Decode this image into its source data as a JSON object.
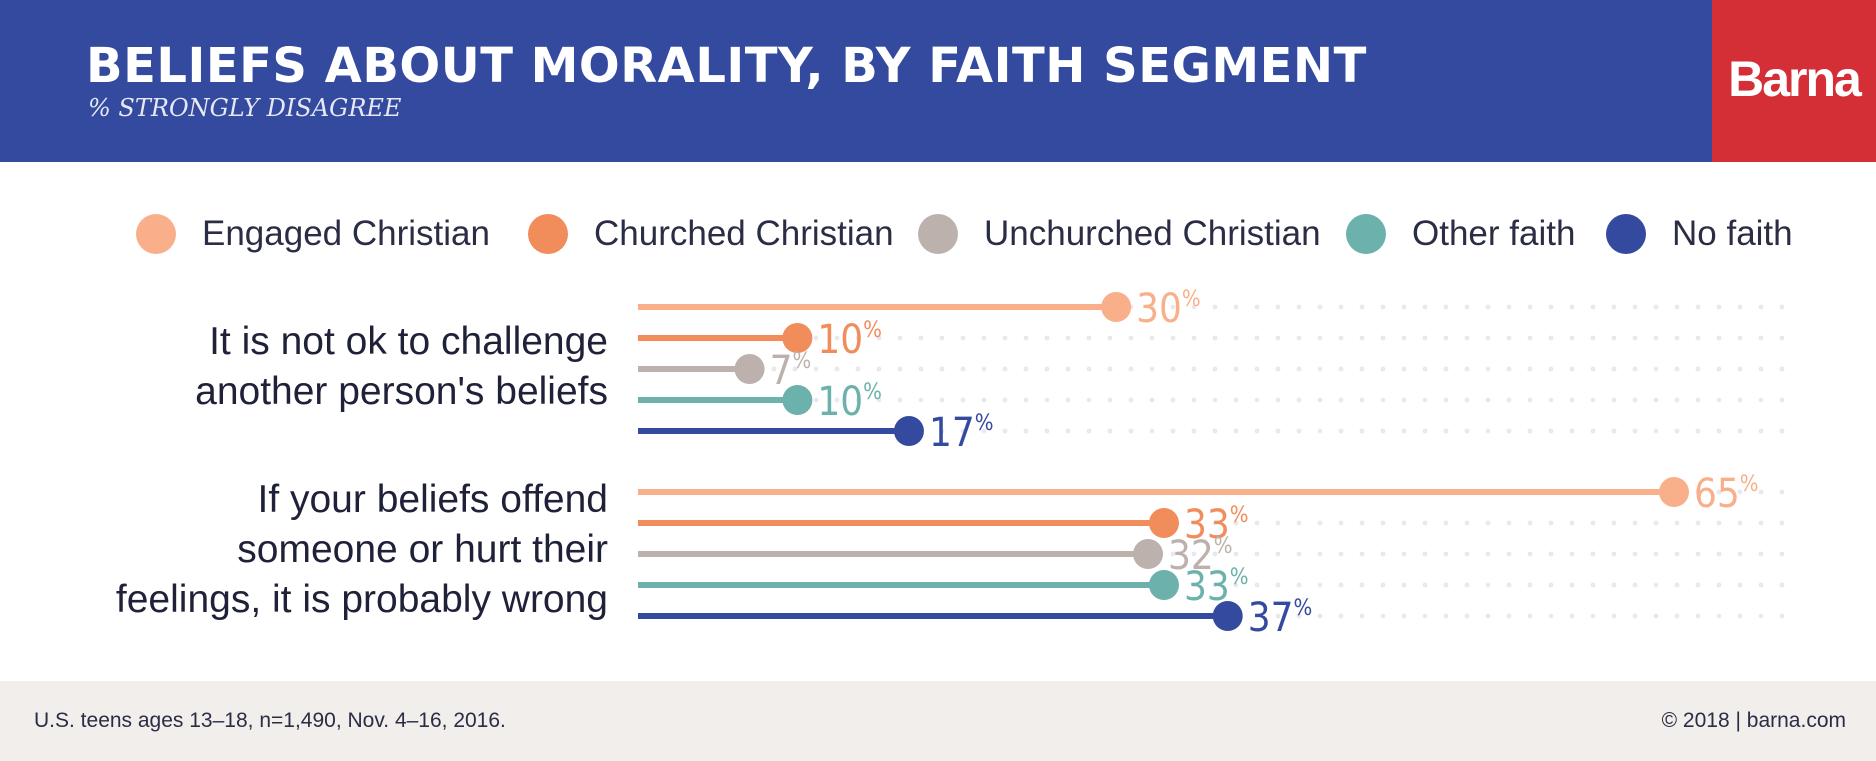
{
  "header": {
    "title": "BELIEFS ABOUT MORALITY, BY FAITH SEGMENT",
    "subtitle": "% STRONGLY DISAGREE",
    "logo": "Barna"
  },
  "colors": {
    "header_bg": "#344a9f",
    "logo_bg": "#d42e36",
    "footer_bg": "#f1eeec"
  },
  "chart_data": {
    "type": "bar",
    "orientation": "horizontal",
    "title": "BELIEFS ABOUT MORALITY, BY FAITH SEGMENT",
    "subtitle": "% STRONGLY DISAGREE",
    "xlim": [
      0,
      65
    ],
    "value_suffix": "%",
    "legend_position": "top",
    "categories": [
      "It is not ok to challenge another person's beliefs",
      "If your beliefs offend someone or hurt their feelings, it is probably wrong"
    ],
    "category_lines": [
      [
        "It is not ok to challenge",
        "another person's beliefs"
      ],
      [
        "If your beliefs offend",
        "someone or hurt their",
        "feelings, it is probably wrong"
      ]
    ],
    "series": [
      {
        "name": "Engaged Christian",
        "color": "#f9b08a",
        "values": [
          30,
          65
        ]
      },
      {
        "name": "Churched Christian",
        "color": "#f18c5b",
        "values": [
          10,
          33
        ]
      },
      {
        "name": "Unchurched Christian",
        "color": "#bdb1ae",
        "values": [
          7,
          32
        ]
      },
      {
        "name": "Other faith",
        "color": "#6cb1ab",
        "values": [
          10,
          33
        ]
      },
      {
        "name": "No faith",
        "color": "#344a9f",
        "values": [
          17,
          37
        ]
      }
    ]
  },
  "footer": {
    "source": "U.S. teens ages 13–18, n=1,490, Nov. 4–16, 2016.",
    "copyright": "© 2018 | barna.com"
  }
}
